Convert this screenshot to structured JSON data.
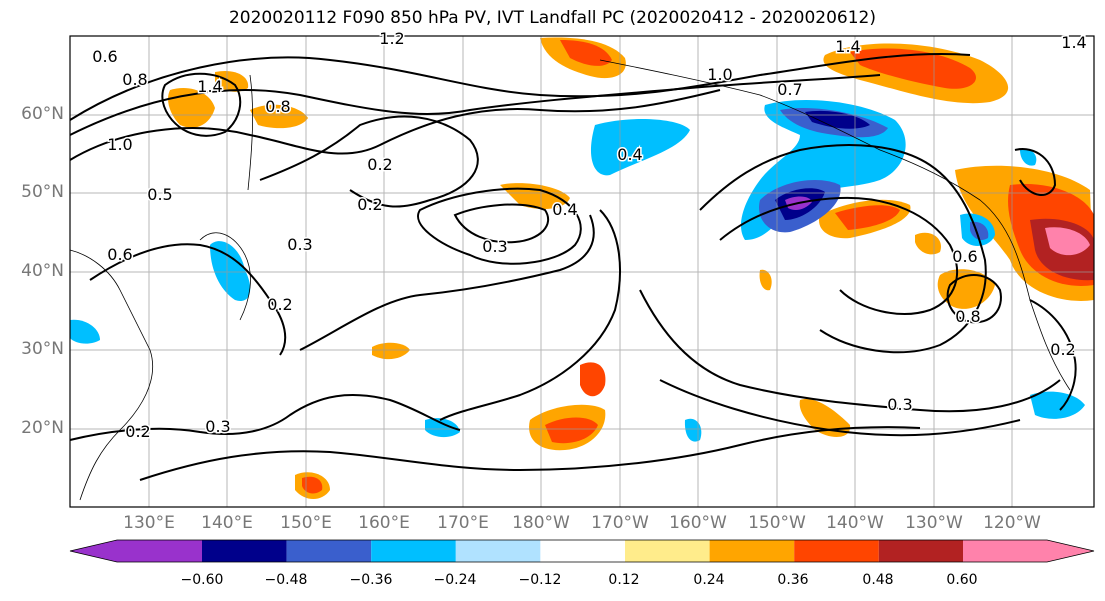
{
  "title": "2020020112 F090 850 hPa PV, IVT Landfall PC (2020020412 - 2020020612)",
  "map": {
    "lat_labels": [
      "60°N",
      "50°N",
      "40°N",
      "30°N",
      "20°N"
    ],
    "lon_labels": [
      "130°E",
      "140°E",
      "150°E",
      "160°E",
      "170°E",
      "180°W",
      "170°W",
      "160°W",
      "150°W",
      "140°W",
      "130°W",
      "120°W"
    ],
    "contour_labels": [
      "1.2",
      "1.4",
      "1.4",
      "0.6",
      "0.8",
      "1.4",
      "0.8",
      "1.0",
      "0.5",
      "0.2",
      "0.2",
      "0.6",
      "0.4",
      "0.2",
      "0.3",
      "0.3",
      "0.2",
      "0.3",
      "0.3",
      "0.7",
      "1.0",
      "0.4",
      "0.6",
      "0.8",
      "0.2"
    ]
  },
  "colorbar": {
    "ticks": [
      "−0.60",
      "−0.48",
      "−0.36",
      "−0.24",
      "−0.12",
      "0.12",
      "0.24",
      "0.36",
      "0.48",
      "0.60"
    ],
    "colors": [
      "#9932CC",
      "#00008B",
      "#3A5FCD",
      "#00BFFF",
      "#B0E2FF",
      "#FFFFFF",
      "#FFEC8B",
      "#FFA500",
      "#FF4500",
      "#B22222",
      "#FF82AB"
    ]
  }
}
